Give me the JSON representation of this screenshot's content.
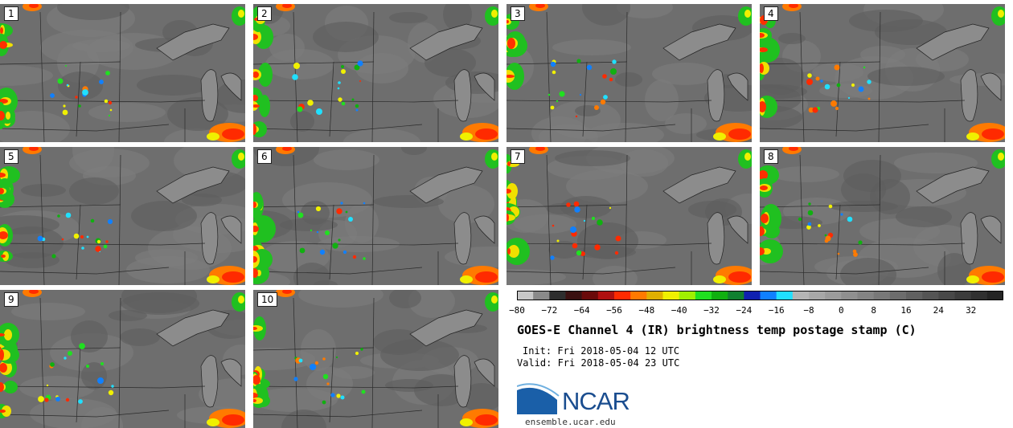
{
  "panels": [
    {
      "label": "1"
    },
    {
      "label": "2"
    },
    {
      "label": "3"
    },
    {
      "label": "4"
    },
    {
      "label": "5"
    },
    {
      "label": "6"
    },
    {
      "label": "7"
    },
    {
      "label": "8"
    },
    {
      "label": "9"
    },
    {
      "label": "10"
    }
  ],
  "colorbar": {
    "ticks": [
      "−80",
      "−72",
      "−64",
      "−56",
      "−48",
      "−40",
      "−32",
      "−24",
      "−16",
      "−8",
      "0",
      "8",
      "16",
      "24",
      "32"
    ],
    "tick_values": [
      -80,
      -72,
      -64,
      -56,
      -48,
      -40,
      -32,
      -24,
      -16,
      -8,
      0,
      8,
      16,
      24,
      32
    ],
    "range": [
      -80,
      40
    ],
    "colors": [
      "#c8c8c8",
      "#8a8a8a",
      "#2d2d2d",
      "#3a1010",
      "#6a0a0a",
      "#b01010",
      "#ff2a00",
      "#ff7a00",
      "#e0b000",
      "#f0f000",
      "#a0f000",
      "#20e020",
      "#10b010",
      "#108030",
      "#1020b0",
      "#1080ff",
      "#20e0ff",
      "#b4b4b4",
      "#a8a8a8",
      "#9c9c9c",
      "#909090",
      "#848484",
      "#787878",
      "#6c6c6c",
      "#606060",
      "#545454",
      "#484848",
      "#3c3c3c",
      "#303030",
      "#242424"
    ]
  },
  "title": "GOES-E Channel 4 (IR) brightness temp postage stamp (C)",
  "init": "Init: Fri 2018-05-04 12 UTC",
  "valid": "Valid: Fri 2018-05-04 23 UTC",
  "logo": {
    "text": "NCAR",
    "url": "ensemble.ucar.edu",
    "icon": "ncar-swoosh-icon"
  }
}
